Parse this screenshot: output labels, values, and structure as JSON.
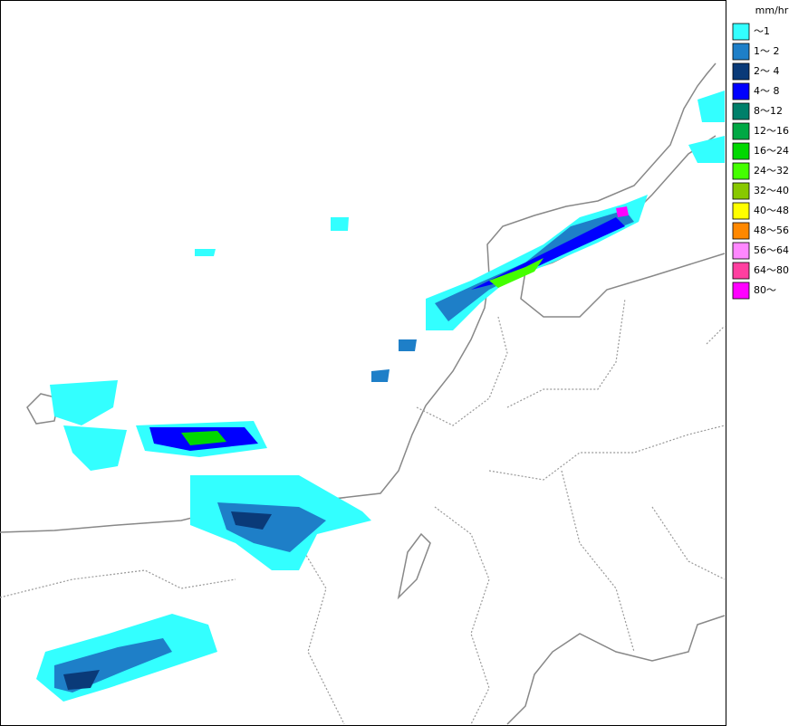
{
  "legend": {
    "title": "mm/hr",
    "items": [
      {
        "label": "～1",
        "color": "#33ffff"
      },
      {
        "label": "1～ 2",
        "color": "#1e7fc8"
      },
      {
        "label": "2～ 4",
        "color": "#0a3a78"
      },
      {
        "label": "4～ 8",
        "color": "#0000ff"
      },
      {
        "label": "8～12",
        "color": "#00806a"
      },
      {
        "label": "12～16",
        "color": "#00a844"
      },
      {
        "label": "16～24",
        "color": "#00d800"
      },
      {
        "label": "24～32",
        "color": "#44ff00"
      },
      {
        "label": "32～40",
        "color": "#88c800"
      },
      {
        "label": "40～48",
        "color": "#ffff00"
      },
      {
        "label": "48～56",
        "color": "#ff8800"
      },
      {
        "label": "56～64",
        "color": "#ff88ff"
      },
      {
        "label": "64～80",
        "color": "#ff3fa0"
      },
      {
        "label": "80～",
        "color": "#ff00ff"
      }
    ]
  }
}
